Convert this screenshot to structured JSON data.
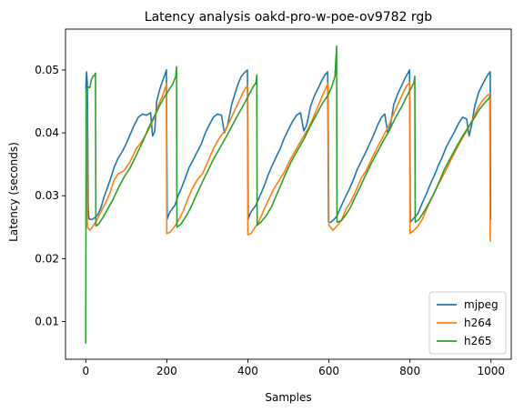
{
  "chart_data": {
    "type": "line",
    "title": "Latency analysis oakd-pro-w-poe-ov9782 rgb",
    "xlabel": "Samples",
    "ylabel": "Latency (seconds)",
    "xlim": [
      -50,
      1050
    ],
    "ylim": [
      0.004,
      0.0565
    ],
    "xticks": [
      0,
      200,
      400,
      600,
      800,
      1000
    ],
    "yticks": [
      0.01,
      0.02,
      0.03,
      0.04,
      0.05
    ],
    "grid": false,
    "legend_position": "bottom-right",
    "series": [
      {
        "name": "mjpeg",
        "color": "#1f77b4",
        "points": [
          [
            0,
            0.047
          ],
          [
            2,
            0.0497
          ],
          [
            4,
            0.0475
          ],
          [
            6,
            0.028
          ],
          [
            8,
            0.0263
          ],
          [
            15,
            0.0262
          ],
          [
            22,
            0.0265
          ],
          [
            30,
            0.027
          ],
          [
            38,
            0.0282
          ],
          [
            45,
            0.0298
          ],
          [
            52,
            0.031
          ],
          [
            60,
            0.0325
          ],
          [
            70,
            0.0345
          ],
          [
            80,
            0.036
          ],
          [
            90,
            0.037
          ],
          [
            100,
            0.0383
          ],
          [
            110,
            0.0398
          ],
          [
            120,
            0.0413
          ],
          [
            130,
            0.0425
          ],
          [
            140,
            0.043
          ],
          [
            150,
            0.0428
          ],
          [
            160,
            0.0432
          ],
          [
            165,
            0.0395
          ],
          [
            170,
            0.0402
          ],
          [
            175,
            0.045
          ],
          [
            182,
            0.0468
          ],
          [
            188,
            0.048
          ],
          [
            195,
            0.0492
          ],
          [
            199,
            0.05
          ],
          [
            201,
            0.0263
          ],
          [
            206,
            0.0272
          ],
          [
            212,
            0.0278
          ],
          [
            220,
            0.0285
          ],
          [
            228,
            0.03
          ],
          [
            236,
            0.0312
          ],
          [
            245,
            0.0327
          ],
          [
            255,
            0.0345
          ],
          [
            265,
            0.0357
          ],
          [
            275,
            0.037
          ],
          [
            285,
            0.0382
          ],
          [
            295,
            0.04
          ],
          [
            305,
            0.0413
          ],
          [
            315,
            0.0425
          ],
          [
            325,
            0.043
          ],
          [
            335,
            0.0428
          ],
          [
            342,
            0.04
          ],
          [
            350,
            0.0412
          ],
          [
            360,
            0.0445
          ],
          [
            368,
            0.0462
          ],
          [
            376,
            0.0478
          ],
          [
            384,
            0.049
          ],
          [
            392,
            0.0496
          ],
          [
            399,
            0.05
          ],
          [
            401,
            0.0263
          ],
          [
            406,
            0.0272
          ],
          [
            412,
            0.0278
          ],
          [
            420,
            0.0285
          ],
          [
            430,
            0.03
          ],
          [
            440,
            0.0315
          ],
          [
            450,
            0.0333
          ],
          [
            460,
            0.0348
          ],
          [
            470,
            0.0362
          ],
          [
            480,
            0.0375
          ],
          [
            490,
            0.0392
          ],
          [
            500,
            0.0405
          ],
          [
            510,
            0.0418
          ],
          [
            520,
            0.0428
          ],
          [
            530,
            0.0432
          ],
          [
            538,
            0.0403
          ],
          [
            545,
            0.0412
          ],
          [
            555,
            0.0443
          ],
          [
            565,
            0.046
          ],
          [
            575,
            0.0473
          ],
          [
            583,
            0.0484
          ],
          [
            590,
            0.0492
          ],
          [
            597,
            0.0497
          ],
          [
            599,
            0.0258
          ],
          [
            605,
            0.0258
          ],
          [
            612,
            0.0262
          ],
          [
            620,
            0.0268
          ],
          [
            630,
            0.0283
          ],
          [
            640,
            0.0297
          ],
          [
            650,
            0.031
          ],
          [
            660,
            0.0325
          ],
          [
            670,
            0.0342
          ],
          [
            680,
            0.0355
          ],
          [
            690,
            0.0368
          ],
          [
            700,
            0.0382
          ],
          [
            710,
            0.0396
          ],
          [
            720,
            0.0412
          ],
          [
            730,
            0.0425
          ],
          [
            738,
            0.043
          ],
          [
            745,
            0.04
          ],
          [
            752,
            0.0412
          ],
          [
            760,
            0.0445
          ],
          [
            770,
            0.0462
          ],
          [
            780,
            0.0476
          ],
          [
            788,
            0.0487
          ],
          [
            795,
            0.0495
          ],
          [
            799,
            0.05
          ],
          [
            801,
            0.0258
          ],
          [
            806,
            0.0262
          ],
          [
            812,
            0.0266
          ],
          [
            820,
            0.0272
          ],
          [
            830,
            0.0288
          ],
          [
            840,
            0.0302
          ],
          [
            850,
            0.0318
          ],
          [
            860,
            0.0332
          ],
          [
            870,
            0.0348
          ],
          [
            880,
            0.0362
          ],
          [
            890,
            0.0378
          ],
          [
            900,
            0.039
          ],
          [
            910,
            0.0402
          ],
          [
            920,
            0.0415
          ],
          [
            930,
            0.0425
          ],
          [
            940,
            0.0422
          ],
          [
            946,
            0.0395
          ],
          [
            952,
            0.0412
          ],
          [
            960,
            0.0443
          ],
          [
            970,
            0.0465
          ],
          [
            980,
            0.0478
          ],
          [
            988,
            0.0488
          ],
          [
            995,
            0.0495
          ],
          [
            998,
            0.0497
          ],
          [
            999,
            0.0262
          ]
        ]
      },
      {
        "name": "h264",
        "color": "#ff7f0e",
        "points": [
          [
            0,
            0.0465
          ],
          [
            2,
            0.047
          ],
          [
            4,
            0.025
          ],
          [
            10,
            0.0245
          ],
          [
            18,
            0.0252
          ],
          [
            28,
            0.0262
          ],
          [
            40,
            0.0278
          ],
          [
            50,
            0.029
          ],
          [
            60,
            0.0305
          ],
          [
            70,
            0.0325
          ],
          [
            80,
            0.0335
          ],
          [
            95,
            0.034
          ],
          [
            110,
            0.0355
          ],
          [
            125,
            0.0375
          ],
          [
            140,
            0.0388
          ],
          [
            155,
            0.0405
          ],
          [
            170,
            0.0425
          ],
          [
            180,
            0.0445
          ],
          [
            190,
            0.046
          ],
          [
            198,
            0.0475
          ],
          [
            199,
            0.0478
          ],
          [
            200,
            0.024
          ],
          [
            208,
            0.0242
          ],
          [
            218,
            0.025
          ],
          [
            228,
            0.026
          ],
          [
            240,
            0.0275
          ],
          [
            250,
            0.0292
          ],
          [
            262,
            0.031
          ],
          [
            275,
            0.0325
          ],
          [
            288,
            0.0335
          ],
          [
            300,
            0.0352
          ],
          [
            315,
            0.0375
          ],
          [
            330,
            0.0392
          ],
          [
            345,
            0.0405
          ],
          [
            360,
            0.0425
          ],
          [
            372,
            0.0442
          ],
          [
            385,
            0.046
          ],
          [
            395,
            0.0472
          ],
          [
            399,
            0.0475
          ],
          [
            400,
            0.0238
          ],
          [
            408,
            0.024
          ],
          [
            418,
            0.025
          ],
          [
            428,
            0.026
          ],
          [
            440,
            0.0278
          ],
          [
            452,
            0.0295
          ],
          [
            465,
            0.0312
          ],
          [
            478,
            0.0325
          ],
          [
            490,
            0.0338
          ],
          [
            505,
            0.0358
          ],
          [
            520,
            0.0375
          ],
          [
            535,
            0.0392
          ],
          [
            550,
            0.0408
          ],
          [
            562,
            0.0425
          ],
          [
            575,
            0.0445
          ],
          [
            585,
            0.046
          ],
          [
            595,
            0.0475
          ],
          [
            598,
            0.0478
          ],
          [
            600,
            0.0253
          ],
          [
            610,
            0.0245
          ],
          [
            620,
            0.0252
          ],
          [
            630,
            0.026
          ],
          [
            642,
            0.0278
          ],
          [
            655,
            0.0292
          ],
          [
            668,
            0.031
          ],
          [
            680,
            0.0328
          ],
          [
            692,
            0.034
          ],
          [
            705,
            0.0358
          ],
          [
            718,
            0.0375
          ],
          [
            732,
            0.0392
          ],
          [
            745,
            0.0408
          ],
          [
            758,
            0.0428
          ],
          [
            770,
            0.0445
          ],
          [
            782,
            0.0462
          ],
          [
            792,
            0.0475
          ],
          [
            799,
            0.048
          ],
          [
            800,
            0.024
          ],
          [
            810,
            0.0245
          ],
          [
            820,
            0.0252
          ],
          [
            830,
            0.0262
          ],
          [
            842,
            0.028
          ],
          [
            855,
            0.0298
          ],
          [
            868,
            0.0315
          ],
          [
            880,
            0.033
          ],
          [
            892,
            0.0345
          ],
          [
            905,
            0.0362
          ],
          [
            918,
            0.0378
          ],
          [
            930,
            0.0392
          ],
          [
            942,
            0.0405
          ],
          [
            955,
            0.0422
          ],
          [
            968,
            0.044
          ],
          [
            980,
            0.0452
          ],
          [
            992,
            0.046
          ],
          [
            997,
            0.0462
          ],
          [
            998,
            0.0228
          ],
          [
            1000,
            0.0228
          ]
        ]
      },
      {
        "name": "h265",
        "color": "#2ca02c",
        "points": [
          [
            0,
            0.0065
          ],
          [
            1,
            0.047
          ],
          [
            3,
            0.0468
          ],
          [
            6,
            0.0473
          ],
          [
            10,
            0.0472
          ],
          [
            14,
            0.0485
          ],
          [
            18,
            0.049
          ],
          [
            22,
            0.0492
          ],
          [
            24,
            0.0495
          ],
          [
            25,
            0.0252
          ],
          [
            32,
            0.0255
          ],
          [
            42,
            0.0265
          ],
          [
            55,
            0.028
          ],
          [
            68,
            0.0295
          ],
          [
            80,
            0.0312
          ],
          [
            95,
            0.033
          ],
          [
            110,
            0.0345
          ],
          [
            125,
            0.0365
          ],
          [
            140,
            0.0385
          ],
          [
            155,
            0.0408
          ],
          [
            168,
            0.0425
          ],
          [
            180,
            0.044
          ],
          [
            192,
            0.0455
          ],
          [
            205,
            0.0468
          ],
          [
            215,
            0.0478
          ],
          [
            222,
            0.049
          ],
          [
            224,
            0.0505
          ],
          [
            225,
            0.025
          ],
          [
            235,
            0.0255
          ],
          [
            248,
            0.0268
          ],
          [
            260,
            0.0282
          ],
          [
            272,
            0.03
          ],
          [
            285,
            0.0318
          ],
          [
            300,
            0.0338
          ],
          [
            315,
            0.0358
          ],
          [
            330,
            0.0375
          ],
          [
            345,
            0.0392
          ],
          [
            360,
            0.041
          ],
          [
            375,
            0.0428
          ],
          [
            390,
            0.0445
          ],
          [
            402,
            0.046
          ],
          [
            412,
            0.0472
          ],
          [
            420,
            0.048
          ],
          [
            422,
            0.0492
          ],
          [
            423,
            0.0253
          ],
          [
            432,
            0.0258
          ],
          [
            445,
            0.0268
          ],
          [
            458,
            0.0282
          ],
          [
            470,
            0.03
          ],
          [
            482,
            0.0318
          ],
          [
            495,
            0.0338
          ],
          [
            510,
            0.0358
          ],
          [
            525,
            0.0375
          ],
          [
            540,
            0.0392
          ],
          [
            555,
            0.0412
          ],
          [
            570,
            0.043
          ],
          [
            585,
            0.0448
          ],
          [
            598,
            0.046
          ],
          [
            608,
            0.0475
          ],
          [
            615,
            0.049
          ],
          [
            619,
            0.0538
          ],
          [
            620,
            0.0258
          ],
          [
            630,
            0.026
          ],
          [
            640,
            0.0268
          ],
          [
            652,
            0.028
          ],
          [
            665,
            0.0298
          ],
          [
            678,
            0.0315
          ],
          [
            690,
            0.0332
          ],
          [
            705,
            0.0352
          ],
          [
            720,
            0.037
          ],
          [
            735,
            0.0388
          ],
          [
            750,
            0.0405
          ],
          [
            765,
            0.0425
          ],
          [
            780,
            0.0442
          ],
          [
            792,
            0.0458
          ],
          [
            802,
            0.047
          ],
          [
            810,
            0.048
          ],
          [
            812,
            0.049
          ],
          [
            813,
            0.0258
          ],
          [
            822,
            0.0262
          ],
          [
            835,
            0.0275
          ],
          [
            848,
            0.029
          ],
          [
            860,
            0.0305
          ],
          [
            872,
            0.0322
          ],
          [
            885,
            0.0342
          ],
          [
            900,
            0.036
          ],
          [
            915,
            0.0378
          ],
          [
            930,
            0.0395
          ],
          [
            945,
            0.041
          ],
          [
            960,
            0.0425
          ],
          [
            972,
            0.0438
          ],
          [
            985,
            0.0448
          ],
          [
            995,
            0.0455
          ],
          [
            999,
            0.046
          ]
        ]
      }
    ]
  }
}
